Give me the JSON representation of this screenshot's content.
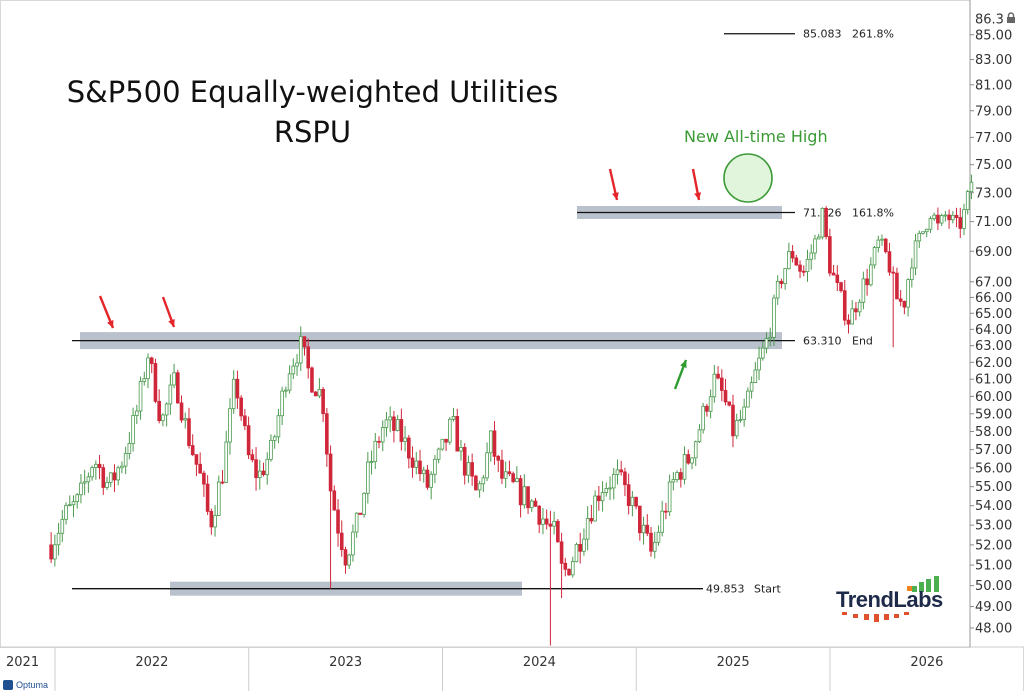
{
  "chart_data": {
    "type": "candlestick",
    "title": "S&P500 Equally-weighted Utilities",
    "subtitle": "RSPU",
    "annotation": "New All-time High",
    "brand": "TrendLabs",
    "footer": "Optuma",
    "y_axis": {
      "position": "right",
      "ylim": [
        47.2,
        86.3
      ],
      "scale": "log",
      "top_label": "86.3",
      "ticks": [
        "85.00",
        "83.00",
        "81.00",
        "79.00",
        "77.00",
        "75.00",
        "73.00",
        "71.00",
        "69.00",
        "67.00",
        "66.00",
        "65.00",
        "64.00",
        "63.00",
        "62.00",
        "61.00",
        "60.00",
        "59.00",
        "58.00",
        "57.00",
        "56.00",
        "55.00",
        "54.00",
        "53.00",
        "52.00",
        "51.00",
        "50.00",
        "49.00",
        "48.00"
      ]
    },
    "x_axis": {
      "labels": [
        "2021",
        "2022",
        "2023",
        "2024",
        "2025",
        "2026"
      ]
    },
    "levels": [
      {
        "value": 85.083,
        "value_label": "85.083",
        "tag": "261.8%"
      },
      {
        "value": 71.626,
        "value_label": "71.626",
        "tag": "161.8%"
      },
      {
        "value": 63.31,
        "value_label": "63.310",
        "tag": "End"
      },
      {
        "value": 49.853,
        "value_label": "49.853",
        "tag": "Start"
      }
    ],
    "series_waypoints": [
      [
        2020.98,
        52.0
      ],
      [
        2021.05,
        53.5
      ],
      [
        2021.12,
        54.2
      ],
      [
        2021.2,
        56.5
      ],
      [
        2021.28,
        55.0
      ],
      [
        2021.35,
        56.5
      ],
      [
        2021.42,
        59.0
      ],
      [
        2021.48,
        62.5
      ],
      [
        2021.55,
        58.5
      ],
      [
        2021.62,
        61.0
      ],
      [
        2021.68,
        58.0
      ],
      [
        2021.75,
        55.5
      ],
      [
        2021.8,
        53.0
      ],
      [
        2021.87,
        56.0
      ],
      [
        2021.93,
        61.0
      ],
      [
        2022.0,
        56.5
      ],
      [
        2022.05,
        55.5
      ],
      [
        2022.12,
        57.0
      ],
      [
        2022.2,
        61.5
      ],
      [
        2022.27,
        63.0
      ],
      [
        2022.32,
        61.0
      ],
      [
        2022.38,
        60.0
      ],
      [
        2022.42,
        55.0
      ],
      [
        2022.46,
        53.0
      ],
      [
        2022.5,
        51.5
      ],
      [
        2022.56,
        53.0
      ],
      [
        2022.62,
        56.0
      ],
      [
        2022.7,
        58.5
      ],
      [
        2022.77,
        58.0
      ],
      [
        2022.85,
        56.5
      ],
      [
        2022.92,
        55.0
      ],
      [
        2023.0,
        57.0
      ],
      [
        2023.05,
        58.5
      ],
      [
        2023.1,
        56.5
      ],
      [
        2023.18,
        54.5
      ],
      [
        2023.25,
        57.5
      ],
      [
        2023.3,
        55.5
      ],
      [
        2023.36,
        55.0
      ],
      [
        2023.42,
        54.5
      ],
      [
        2023.48,
        54.0
      ],
      [
        2023.54,
        53.0
      ],
      [
        2023.58,
        52.5
      ],
      [
        2023.62,
        50.5
      ],
      [
        2023.68,
        51.5
      ],
      [
        2023.75,
        53.5
      ],
      [
        2023.82,
        55.0
      ],
      [
        2023.9,
        55.5
      ],
      [
        2023.96,
        54.5
      ],
      [
        2024.02,
        53.0
      ],
      [
        2024.08,
        51.5
      ],
      [
        2024.12,
        53.0
      ],
      [
        2024.2,
        55.5
      ],
      [
        2024.27,
        56.5
      ],
      [
        2024.32,
        58.0
      ],
      [
        2024.4,
        61.0
      ],
      [
        2024.45,
        60.0
      ],
      [
        2024.5,
        58.0
      ],
      [
        2024.56,
        59.0
      ],
      [
        2024.62,
        61.5
      ],
      [
        2024.68,
        63.5
      ],
      [
        2024.74,
        67.0
      ],
      [
        2024.8,
        69.0
      ],
      [
        2024.86,
        67.5
      ],
      [
        2024.92,
        69.5
      ],
      [
        2024.96,
        71.5
      ],
      [
        2025.0,
        68.0
      ],
      [
        2025.05,
        66.0
      ],
      [
        2025.1,
        64.5
      ],
      [
        2025.16,
        66.5
      ],
      [
        2025.2,
        67.5
      ],
      [
        2025.25,
        69.5
      ],
      [
        2025.3,
        68.5
      ],
      [
        2025.34,
        66.0
      ],
      [
        2025.38,
        65.5
      ],
      [
        2025.42,
        68.5
      ],
      [
        2025.47,
        70.0
      ],
      [
        2025.52,
        71.8
      ],
      [
        2025.56,
        70.5
      ],
      [
        2025.6,
        71.5
      ],
      [
        2025.66,
        70.5
      ],
      [
        2025.7,
        71.8
      ],
      [
        2025.74,
        74.5
      ]
    ]
  }
}
